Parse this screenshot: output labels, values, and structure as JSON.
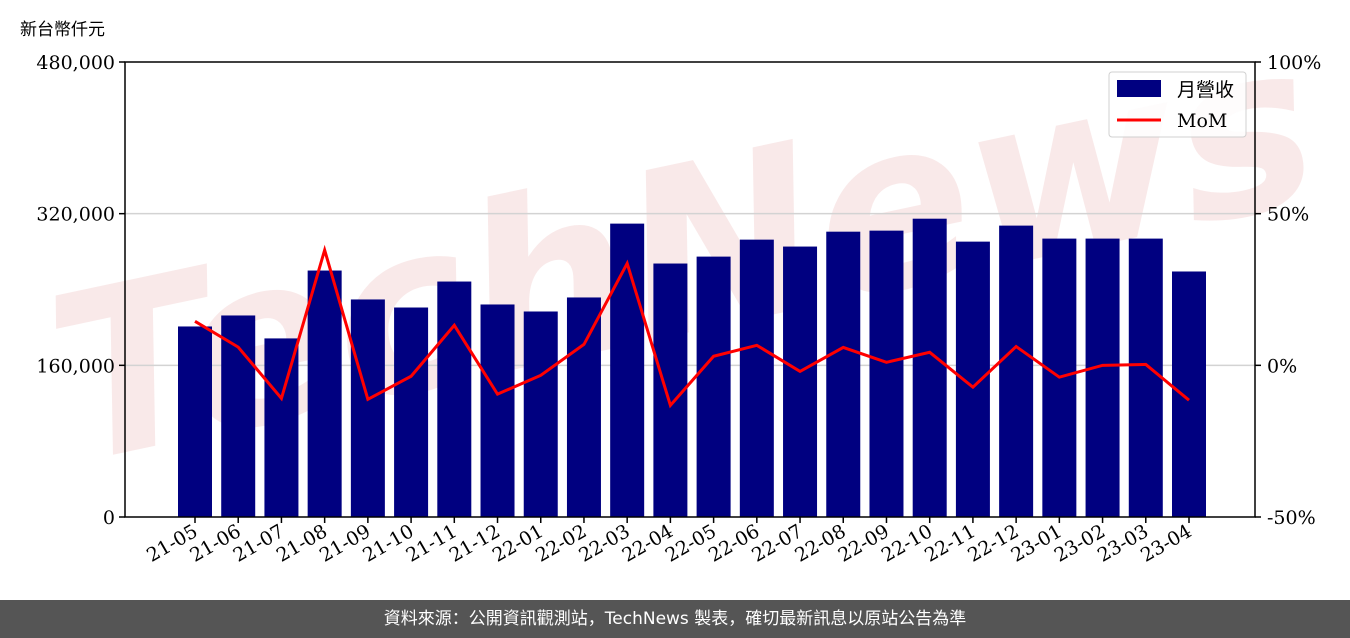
{
  "unit_label": "新台幣仟元",
  "footer": "資料來源：公開資訊觀測站，TechNews 製表，確切最新訊息以原站公告為準",
  "watermark": "TechNews",
  "colors": {
    "bar": "#000080",
    "line": "#ff0000",
    "grid": "#d3d3d3",
    "footer_bg": "#555555"
  },
  "chart_data": {
    "type": "bar+line",
    "categories": [
      "21-05",
      "21-06",
      "21-07",
      "21-08",
      "21-09",
      "21-10",
      "21-11",
      "21-12",
      "22-01",
      "22-02",
      "22-03",
      "22-04",
      "22-05",
      "22-06",
      "22-07",
      "22-08",
      "22-09",
      "22-10",
      "22-11",
      "22-12",
      "23-01",
      "23-02",
      "23-03",
      "23-04"
    ],
    "series": [
      {
        "name": "月營收",
        "type": "bar",
        "axis": "left",
        "values": [
          201000,
          212600,
          188400,
          260000,
          229500,
          221000,
          248400,
          224200,
          216800,
          231600,
          309500,
          267400,
          274700,
          292600,
          285300,
          301000,
          302100,
          314700,
          290500,
          307400,
          293700,
          293700,
          293700,
          259000
        ]
      },
      {
        "name": "MoM",
        "type": "line",
        "axis": "right",
        "unit": "%",
        "values": [
          14.5,
          6.0,
          -10.9,
          38.0,
          -11.2,
          -3.6,
          13.2,
          -9.5,
          -3.3,
          6.9,
          33.6,
          -13.2,
          3.0,
          6.6,
          -2.0,
          5.9,
          1.0,
          4.3,
          -7.2,
          6.2,
          -3.9,
          0.0,
          0.3,
          -11.5
        ]
      }
    ],
    "left_axis": {
      "ylim": [
        0,
        480000
      ],
      "ticks": [
        0,
        160000,
        320000,
        480000
      ],
      "tick_labels": [
        "0",
        "160,000",
        "320,000",
        "480,000"
      ]
    },
    "right_axis": {
      "ylim": [
        -50,
        100
      ],
      "ticks": [
        -50,
        0,
        50,
        100
      ],
      "tick_labels": [
        "-50%",
        "0%",
        "50%",
        "100%"
      ]
    },
    "grid": "horizontal",
    "legend": {
      "placement": "top-right",
      "entries": [
        "月營收",
        "MoM"
      ]
    }
  }
}
